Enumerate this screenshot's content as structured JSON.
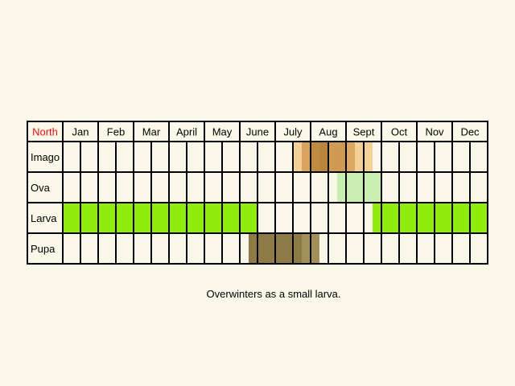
{
  "region": "North",
  "months": [
    "Jan",
    "Feb",
    "Mar",
    "April",
    "May",
    "June",
    "July",
    "Aug",
    "Sept",
    "Oct",
    "Nov",
    "Dec"
  ],
  "stages": [
    {
      "name": "Imago",
      "periods": [
        {
          "start_week": 27,
          "end_week": 28,
          "color": "#f3d196"
        },
        {
          "start_week": 28,
          "end_week": 29,
          "color": "#d9a35e"
        },
        {
          "start_week": 29,
          "end_week": 30,
          "color": "#c18a42"
        },
        {
          "start_week": 30,
          "end_week": 31,
          "color": "#b9843c"
        },
        {
          "start_week": 31,
          "end_week": 33,
          "color": "#d09a55"
        },
        {
          "start_week": 33,
          "end_week": 34,
          "color": "#dca864"
        },
        {
          "start_week": 34,
          "end_week": 35,
          "color": "#f3d196"
        }
      ]
    },
    {
      "name": "Ova",
      "periods": [
        {
          "start_week": 32,
          "end_week": 36,
          "color": "#c8eeb0"
        }
      ]
    },
    {
      "name": "Larva",
      "periods": [
        {
          "start_week": 1,
          "end_week": 22,
          "color": "#8fec0c"
        },
        {
          "start_week": 36,
          "end_week": 48,
          "color": "#8fec0c"
        }
      ]
    },
    {
      "name": "Pupa",
      "periods": [
        {
          "start_week": 22,
          "end_week": 28,
          "color": "#8d7a47"
        },
        {
          "start_week": 28,
          "end_week": 29,
          "color": "#a38f5a"
        }
      ]
    }
  ],
  "note": "Overwinters as a small larva.",
  "colors": {
    "background": "#fbf8e9",
    "grid": "#000000",
    "region_label": "#e01010"
  }
}
